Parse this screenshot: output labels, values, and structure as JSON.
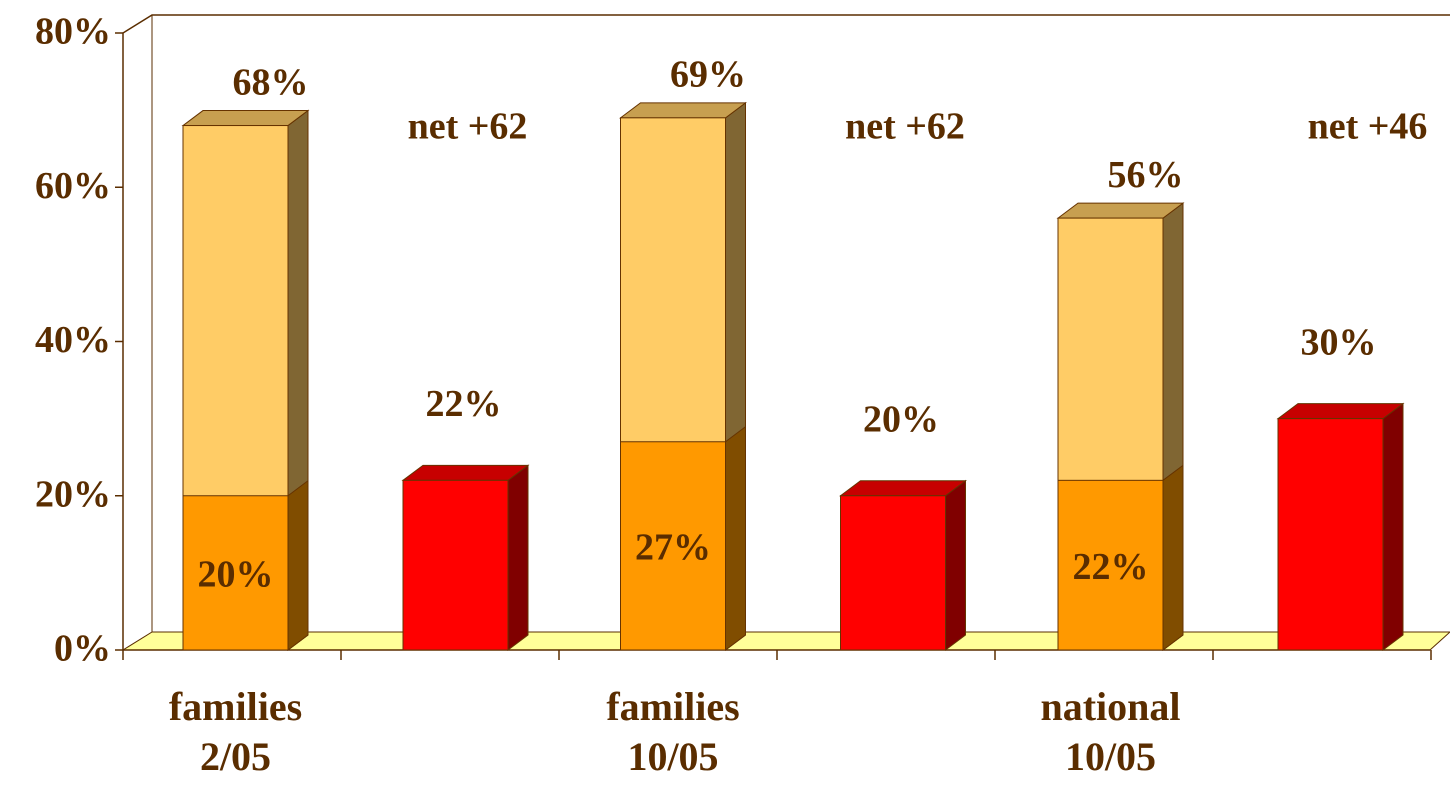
{
  "chart_data": {
    "type": "bar3d",
    "categories": [
      "families 2/05",
      "families 10/05",
      "national 10/05"
    ],
    "series": [
      {
        "color": "#ffcc66",
        "values": [
          68,
          69,
          56
        ],
        "value_labels": [
          "68%",
          "69%",
          "56%"
        ]
      },
      {
        "color": "#ff9900",
        "values": [
          20,
          27,
          22
        ],
        "value_labels": [
          "20%",
          "27%",
          "22%"
        ]
      },
      {
        "color": "#ff0000",
        "values": [
          22,
          20,
          30
        ],
        "value_labels": [
          "22%",
          "20%",
          "30%"
        ]
      }
    ],
    "annotations": [
      "net +62",
      "net +62",
      "net +46"
    ],
    "ylim": [
      0,
      80
    ],
    "yticks": [
      {
        "value": 0,
        "label": "0%"
      },
      {
        "value": 20,
        "label": "20%"
      },
      {
        "value": 40,
        "label": "40%"
      },
      {
        "value": 60,
        "label": "60%"
      },
      {
        "value": 80,
        "label": "80%"
      }
    ],
    "floor_color": "#ffff99"
  }
}
